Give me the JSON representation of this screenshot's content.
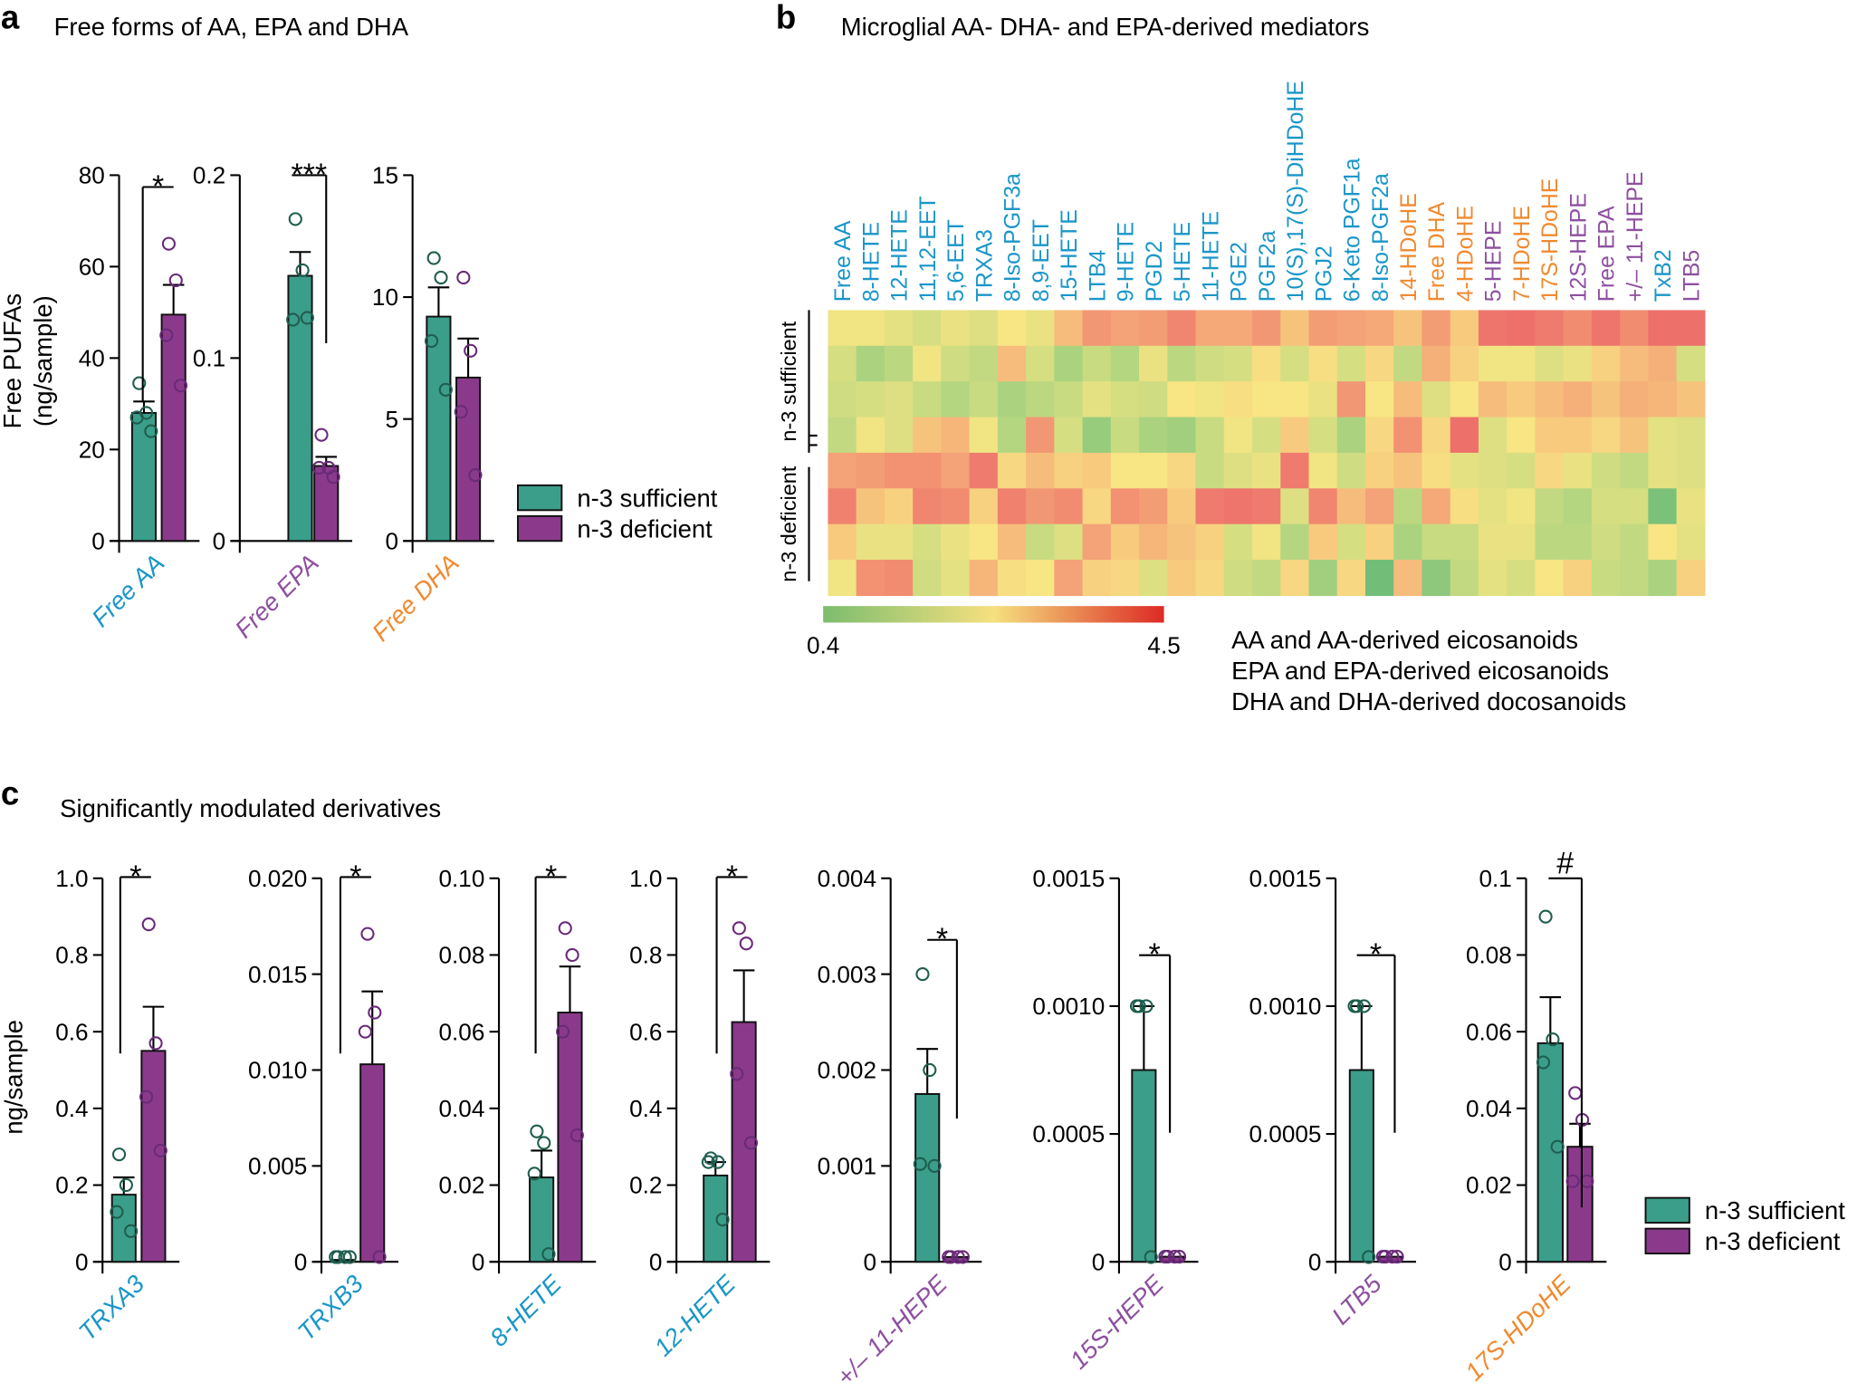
{
  "colors": {
    "sufficient": "#3a9e8a",
    "deficient": "#8b3a8b",
    "sufficient_point": "#1f5e4e",
    "deficient_point": "#6a2a7a",
    "AA": "#1a96c8",
    "EPA": "#8e50a0",
    "DHA": "#f08a30"
  },
  "legend": {
    "sufficient": "n-3 sufficient",
    "deficient": "n-3 deficient"
  },
  "chart_data": [
    {
      "panel": "a",
      "type": "bar",
      "title": "Free forms of AA, EPA and DHA",
      "ylabel_line1": "Free PUFAs",
      "ylabel_line2": "(ng/sample)",
      "subplots": [
        {
          "category": "Free AA",
          "group": "AA",
          "ylim": [
            0,
            80
          ],
          "ticks": [
            "0",
            "20",
            "40",
            "60",
            "80"
          ],
          "significance": "*",
          "sufficient": {
            "mean": 28,
            "sem_upper": 30.5,
            "points": [
              34.5,
              28,
              27,
              24
            ]
          },
          "deficient": {
            "mean": 49.5,
            "sem_upper": 56,
            "points": [
              65,
              57,
              45,
              34
            ]
          }
        },
        {
          "category": "Free EPA",
          "group": "EPA",
          "ylim": [
            0,
            0.2
          ],
          "ticks": [
            "0",
            "0.1",
            "0.2"
          ],
          "significance": "***",
          "sufficient": {
            "mean": 0.145,
            "sem_upper": 0.158,
            "points": [
              0.176,
              0.148,
              0.121,
              0.122
            ]
          },
          "deficient": {
            "mean": 0.041,
            "sem_upper": 0.046,
            "points": [
              0.058,
              0.04,
              0.04,
              0.035
            ]
          }
        },
        {
          "category": "Free DHA",
          "group": "DHA",
          "ylim": [
            0,
            15
          ],
          "ticks": [
            "0",
            "5",
            "10",
            "15"
          ],
          "significance": "",
          "sufficient": {
            "mean": 9.2,
            "sem_upper": 10.4,
            "points": [
              11.6,
              10.8,
              8.2,
              6.2
            ]
          },
          "deficient": {
            "mean": 6.7,
            "sem_upper": 8.3,
            "points": [
              10.8,
              7.8,
              5.3,
              2.7
            ]
          }
        }
      ]
    },
    {
      "panel": "b",
      "type": "heatmap",
      "title": "Microglial AA- DHA- and EPA-derived mediators",
      "columns": [
        {
          "label": "Free AA",
          "group": "AA"
        },
        {
          "label": "8-HETE",
          "group": "AA"
        },
        {
          "label": "12-HETE",
          "group": "AA"
        },
        {
          "label": "11,12-EET",
          "group": "AA"
        },
        {
          "label": "5,6-EET",
          "group": "AA"
        },
        {
          "label": "TRXA3",
          "group": "AA"
        },
        {
          "label": "8-Iso-PGF3a",
          "group": "AA"
        },
        {
          "label": "8,9-EET",
          "group": "AA"
        },
        {
          "label": "15-HETE",
          "group": "AA"
        },
        {
          "label": "LTB4",
          "group": "AA"
        },
        {
          "label": "9-HETE",
          "group": "AA"
        },
        {
          "label": "PGD2",
          "group": "AA"
        },
        {
          "label": "5-HETE",
          "group": "AA"
        },
        {
          "label": "11-HETE",
          "group": "AA"
        },
        {
          "label": "PGE2",
          "group": "AA"
        },
        {
          "label": "PGF2a",
          "group": "AA"
        },
        {
          "label": "10(S),17(S)-DiHDoHE",
          "group": "AA"
        },
        {
          "label": "PGJ2",
          "group": "AA"
        },
        {
          "label": "6-Keto PGF1a",
          "group": "AA"
        },
        {
          "label": "8-Iso-PGF2a",
          "group": "AA"
        },
        {
          "label": "14-HDoHE",
          "group": "DHA"
        },
        {
          "label": "Free DHA",
          "group": "DHA"
        },
        {
          "label": "4-HDoHE",
          "group": "DHA"
        },
        {
          "label": "5-HEPE",
          "group": "EPA"
        },
        {
          "label": "7-HDoHE",
          "group": "DHA"
        },
        {
          "label": "17S-HDoHE",
          "group": "DHA"
        },
        {
          "label": "12S-HEPE",
          "group": "EPA"
        },
        {
          "label": "Free EPA",
          "group": "EPA"
        },
        {
          "label": "+/– 11-HEPE",
          "group": "EPA"
        },
        {
          "label": "TxB2",
          "group": "AA"
        },
        {
          "label": "LTB5",
          "group": "EPA"
        }
      ],
      "row_groups": [
        {
          "label": "n-3 sufficient",
          "rows": [
            0,
            1,
            2,
            3
          ]
        },
        {
          "label": "n-3 deficient",
          "rows": [
            4,
            5,
            6,
            7
          ]
        }
      ],
      "values": [
        [
          2.2,
          2.2,
          2.0,
          1.8,
          2.1,
          1.9,
          2.3,
          2.1,
          2.9,
          3.5,
          3.3,
          3.4,
          3.8,
          3.2,
          3.2,
          3.5,
          2.8,
          3.4,
          3.3,
          3.2,
          2.8,
          3.4,
          2.7,
          4.1,
          4.2,
          4.0,
          3.7,
          4.1,
          3.7,
          4.2,
          4.2
        ],
        [
          1.8,
          1.2,
          1.4,
          2.2,
          1.7,
          1.5,
          2.9,
          1.8,
          1.2,
          1.6,
          1.3,
          2.1,
          1.4,
          1.7,
          1.8,
          2.4,
          1.8,
          2.4,
          1.8,
          2.5,
          1.5,
          3.1,
          2.6,
          2.2,
          2.2,
          1.9,
          2.1,
          2.6,
          2.9,
          3.1,
          1.8
        ],
        [
          1.7,
          1.8,
          1.9,
          1.6,
          1.3,
          1.6,
          1.2,
          1.4,
          1.6,
          2.0,
          1.8,
          1.7,
          2.3,
          2.2,
          2.4,
          2.3,
          2.3,
          2.1,
          3.5,
          2.3,
          2.9,
          1.9,
          2.3,
          2.9,
          2.7,
          2.9,
          3.1,
          2.8,
          3.1,
          3.0,
          2.8
        ],
        [
          1.5,
          2.2,
          1.9,
          2.8,
          3.0,
          2.2,
          1.3,
          3.5,
          1.8,
          1.0,
          1.6,
          1.2,
          1.1,
          1.6,
          2.2,
          1.8,
          2.7,
          1.8,
          1.2,
          2.5,
          3.6,
          2.5,
          4.2,
          1.9,
          2.3,
          2.7,
          2.7,
          2.5,
          2.8,
          2.0,
          1.9
        ],
        [
          3.3,
          3.4,
          3.6,
          3.6,
          3.3,
          4.0,
          2.5,
          2.9,
          2.6,
          2.7,
          2.3,
          2.3,
          2.5,
          1.6,
          1.9,
          2.1,
          4.0,
          2.2,
          1.7,
          2.6,
          2.8,
          2.4,
          2.0,
          1.9,
          1.8,
          2.5,
          2.1,
          1.7,
          1.5,
          2.0,
          1.9
        ],
        [
          3.9,
          2.8,
          2.6,
          3.8,
          3.7,
          2.6,
          3.9,
          3.5,
          3.7,
          2.5,
          3.6,
          3.4,
          2.7,
          4.0,
          4.1,
          4.0,
          1.9,
          3.8,
          2.9,
          3.3,
          1.4,
          3.2,
          2.4,
          2.0,
          2.2,
          1.5,
          1.3,
          1.8,
          1.8,
          0.7,
          2.1
        ],
        [
          2.7,
          2.1,
          2.1,
          1.8,
          2.1,
          2.3,
          2.9,
          1.6,
          1.9,
          3.3,
          2.7,
          3.0,
          2.8,
          2.6,
          1.8,
          2.2,
          1.3,
          2.7,
          1.8,
          2.6,
          1.2,
          1.6,
          1.6,
          2.1,
          2.1,
          1.4,
          1.4,
          1.7,
          1.5,
          2.3,
          2.0
        ],
        [
          2.2,
          3.6,
          3.7,
          1.7,
          2.0,
          3.0,
          2.4,
          2.3,
          3.3,
          2.6,
          2.5,
          1.9,
          2.7,
          2.5,
          1.7,
          1.5,
          2.5,
          1.1,
          2.5,
          0.6,
          2.9,
          0.9,
          1.5,
          2.0,
          1.8,
          2.3,
          2.6,
          1.6,
          1.5,
          1.2,
          2.6
        ]
      ],
      "colorbar": {
        "min": 0.4,
        "max": 4.5,
        "min_label": "0.4",
        "max_label": "4.5",
        "colors": [
          "#7cbd6e",
          "#f6e07f",
          "#dc2a24"
        ]
      },
      "group_legend": [
        {
          "group": "AA",
          "label": "AA and AA-derived eicosanoids"
        },
        {
          "group": "EPA",
          "label": "EPA and EPA-derived eicosanoids"
        },
        {
          "group": "DHA",
          "label": "DHA and DHA-derived docosanoids"
        }
      ]
    },
    {
      "panel": "c",
      "type": "bar",
      "title": "Significantly modulated derivatives",
      "ylabel": "ng/sample",
      "subplots": [
        {
          "category": "TRXA3",
          "group": "AA",
          "ylim": [
            0,
            1.0
          ],
          "ticks": [
            "0",
            "0.2",
            "0.4",
            "0.6",
            "0.8",
            "1.0"
          ],
          "significance": "*",
          "sufficient": {
            "mean": 0.175,
            "sem_upper": 0.22,
            "points": [
              0.28,
              0.2,
              0.13,
              0.08
            ]
          },
          "deficient": {
            "mean": 0.55,
            "sem_upper": 0.665,
            "points": [
              0.88,
              0.57,
              0.43,
              0.29
            ]
          }
        },
        {
          "category": "TRXB3",
          "group": "AA",
          "ylim": [
            0,
            0.02
          ],
          "ticks": [
            "0",
            "0.005",
            "0.010",
            "0.015",
            "0.020"
          ],
          "significance": "*",
          "sufficient": {
            "mean": 0.0001,
            "sem_upper": 0.0001,
            "points": [
              0.0002,
              0.0002,
              0.0002,
              0.0002
            ]
          },
          "deficient": {
            "mean": 0.0103,
            "sem_upper": 0.0141,
            "points": [
              0.0171,
              0.013,
              0.012,
              0.0002
            ]
          }
        },
        {
          "category": "8-HETE",
          "group": "AA",
          "ylim": [
            0,
            0.1
          ],
          "ticks": [
            "0",
            "0.02",
            "0.04",
            "0.06",
            "0.08",
            "0.10"
          ],
          "significance": "*",
          "sufficient": {
            "mean": 0.022,
            "sem_upper": 0.029,
            "points": [
              0.034,
              0.031,
              0.023,
              0.002
            ]
          },
          "deficient": {
            "mean": 0.065,
            "sem_upper": 0.077,
            "points": [
              0.087,
              0.08,
              0.06,
              0.033
            ]
          }
        },
        {
          "category": "12-HETE",
          "group": "AA",
          "ylim": [
            0,
            1.0
          ],
          "ticks": [
            "0",
            "0.2",
            "0.4",
            "0.6",
            "0.8",
            "1.0"
          ],
          "significance": "*",
          "sufficient": {
            "mean": 0.225,
            "sem_upper": 0.26,
            "points": [
              0.27,
              0.26,
              0.26,
              0.11
            ]
          },
          "deficient": {
            "mean": 0.625,
            "sem_upper": 0.76,
            "points": [
              0.87,
              0.83,
              0.49,
              0.31
            ]
          }
        },
        {
          "category": "+/– 11-HEPE",
          "group": "EPA",
          "ylim": [
            0,
            0.004
          ],
          "ticks": [
            "0",
            "0.001",
            "0.002",
            "0.003",
            "0.004"
          ],
          "significance": "*",
          "sufficient": {
            "mean": 0.00175,
            "sem_upper": 0.00222,
            "points": [
              0.003,
              0.002,
              0.00102,
              0.001
            ]
          },
          "deficient": {
            "mean": 5e-05,
            "sem_upper": 5e-05,
            "points": [
              5e-05,
              5e-05,
              5e-05,
              5e-05
            ]
          }
        },
        {
          "category": "15S-HEPE",
          "group": "EPA",
          "ylim": [
            0,
            0.0015
          ],
          "ticks": [
            "0",
            "0.0005",
            "0.0010",
            "0.0015"
          ],
          "significance": "*",
          "sufficient": {
            "mean": 0.00075,
            "sem_upper": 0.001,
            "points": [
              0.001,
              0.001,
              0.001,
              0.0
            ]
          },
          "deficient": {
            "mean": 2e-05,
            "sem_upper": 2e-05,
            "points": [
              2e-05,
              2e-05,
              2e-05,
              2e-05
            ]
          }
        },
        {
          "category": "LTB5",
          "group": "EPA",
          "ylim": [
            0,
            0.0015
          ],
          "ticks": [
            "0",
            "0.0005",
            "0.0010",
            "0.0015"
          ],
          "significance": "*",
          "sufficient": {
            "mean": 0.00075,
            "sem_upper": 0.001,
            "points": [
              0.001,
              0.001,
              0.001,
              0.0
            ]
          },
          "deficient": {
            "mean": 2e-05,
            "sem_upper": 2e-05,
            "points": [
              2e-05,
              2e-05,
              2e-05,
              2e-05
            ]
          }
        },
        {
          "category": "17S-HDoHE",
          "group": "DHA",
          "ylim": [
            0,
            0.1
          ],
          "ticks": [
            "0",
            "0.02",
            "0.04",
            "0.06",
            "0.08",
            "0.1"
          ],
          "significance": "#",
          "sufficient": {
            "mean": 0.057,
            "sem_upper": 0.069,
            "points": [
              0.09,
              0.058,
              0.052,
              0.03
            ]
          },
          "deficient": {
            "mean": 0.03,
            "sem_upper": 0.036,
            "points": [
              0.044,
              0.037,
              0.021,
              0.021
            ]
          }
        }
      ]
    }
  ]
}
